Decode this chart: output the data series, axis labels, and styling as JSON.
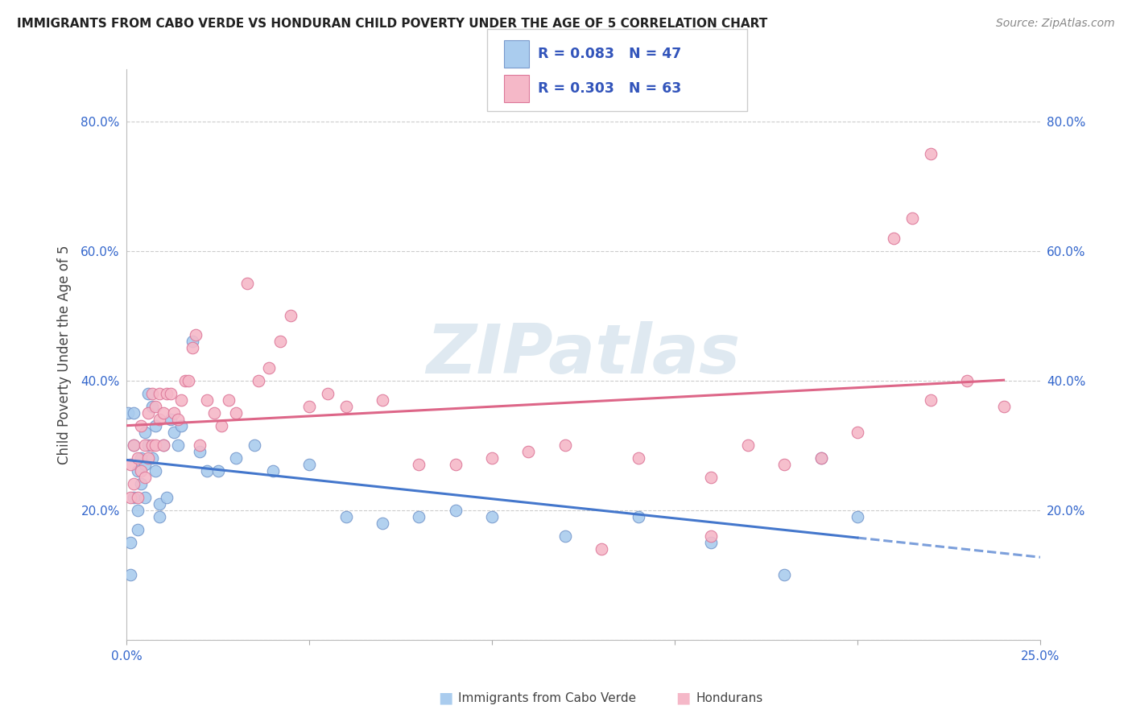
{
  "title": "IMMIGRANTS FROM CABO VERDE VS HONDURAN CHILD POVERTY UNDER THE AGE OF 5 CORRELATION CHART",
  "source": "Source: ZipAtlas.com",
  "ylabel": "Child Poverty Under the Age of 5",
  "xlim": [
    0.0,
    0.25
  ],
  "ylim": [
    0.0,
    0.88
  ],
  "cabo_verde_color": "#aaccee",
  "cabo_verde_edge": "#7799cc",
  "honduran_color": "#f5b8c8",
  "honduran_edge": "#dd7799",
  "cabo_verde_R": 0.083,
  "cabo_verde_N": 47,
  "honduran_R": 0.303,
  "honduran_N": 63,
  "legend_color": "#3355bb",
  "cabo_verde_line_color": "#4477cc",
  "honduran_line_color": "#dd6688",
  "watermark_text": "ZIPatlas",
  "cabo_verde_x": [
    0.0005,
    0.001,
    0.001,
    0.002,
    0.002,
    0.002,
    0.003,
    0.003,
    0.003,
    0.004,
    0.004,
    0.005,
    0.005,
    0.005,
    0.006,
    0.006,
    0.007,
    0.007,
    0.008,
    0.008,
    0.009,
    0.009,
    0.01,
    0.011,
    0.012,
    0.013,
    0.014,
    0.015,
    0.018,
    0.02,
    0.022,
    0.025,
    0.03,
    0.035,
    0.04,
    0.05,
    0.06,
    0.07,
    0.08,
    0.09,
    0.1,
    0.12,
    0.14,
    0.16,
    0.18,
    0.19,
    0.2
  ],
  "cabo_verde_y": [
    0.35,
    0.15,
    0.1,
    0.35,
    0.3,
    0.22,
    0.26,
    0.2,
    0.17,
    0.28,
    0.24,
    0.32,
    0.27,
    0.22,
    0.38,
    0.3,
    0.36,
    0.28,
    0.33,
    0.26,
    0.21,
    0.19,
    0.3,
    0.22,
    0.34,
    0.32,
    0.3,
    0.33,
    0.46,
    0.29,
    0.26,
    0.26,
    0.28,
    0.3,
    0.26,
    0.27,
    0.19,
    0.18,
    0.19,
    0.2,
    0.19,
    0.16,
    0.19,
    0.15,
    0.1,
    0.28,
    0.19
  ],
  "honduran_x": [
    0.001,
    0.001,
    0.002,
    0.002,
    0.003,
    0.003,
    0.004,
    0.004,
    0.005,
    0.005,
    0.006,
    0.006,
    0.007,
    0.007,
    0.008,
    0.008,
    0.009,
    0.009,
    0.01,
    0.01,
    0.011,
    0.012,
    0.013,
    0.014,
    0.015,
    0.016,
    0.017,
    0.018,
    0.019,
    0.02,
    0.022,
    0.024,
    0.026,
    0.028,
    0.03,
    0.033,
    0.036,
    0.039,
    0.042,
    0.045,
    0.05,
    0.055,
    0.06,
    0.07,
    0.08,
    0.09,
    0.1,
    0.11,
    0.12,
    0.14,
    0.16,
    0.17,
    0.18,
    0.19,
    0.2,
    0.21,
    0.215,
    0.22,
    0.23,
    0.22,
    0.16,
    0.13,
    0.24
  ],
  "honduran_y": [
    0.27,
    0.22,
    0.3,
    0.24,
    0.28,
    0.22,
    0.33,
    0.26,
    0.3,
    0.25,
    0.35,
    0.28,
    0.38,
    0.3,
    0.36,
    0.3,
    0.38,
    0.34,
    0.35,
    0.3,
    0.38,
    0.38,
    0.35,
    0.34,
    0.37,
    0.4,
    0.4,
    0.45,
    0.47,
    0.3,
    0.37,
    0.35,
    0.33,
    0.37,
    0.35,
    0.55,
    0.4,
    0.42,
    0.46,
    0.5,
    0.36,
    0.38,
    0.36,
    0.37,
    0.27,
    0.27,
    0.28,
    0.29,
    0.3,
    0.28,
    0.16,
    0.3,
    0.27,
    0.28,
    0.32,
    0.62,
    0.65,
    0.75,
    0.4,
    0.37,
    0.25,
    0.14,
    0.36
  ]
}
